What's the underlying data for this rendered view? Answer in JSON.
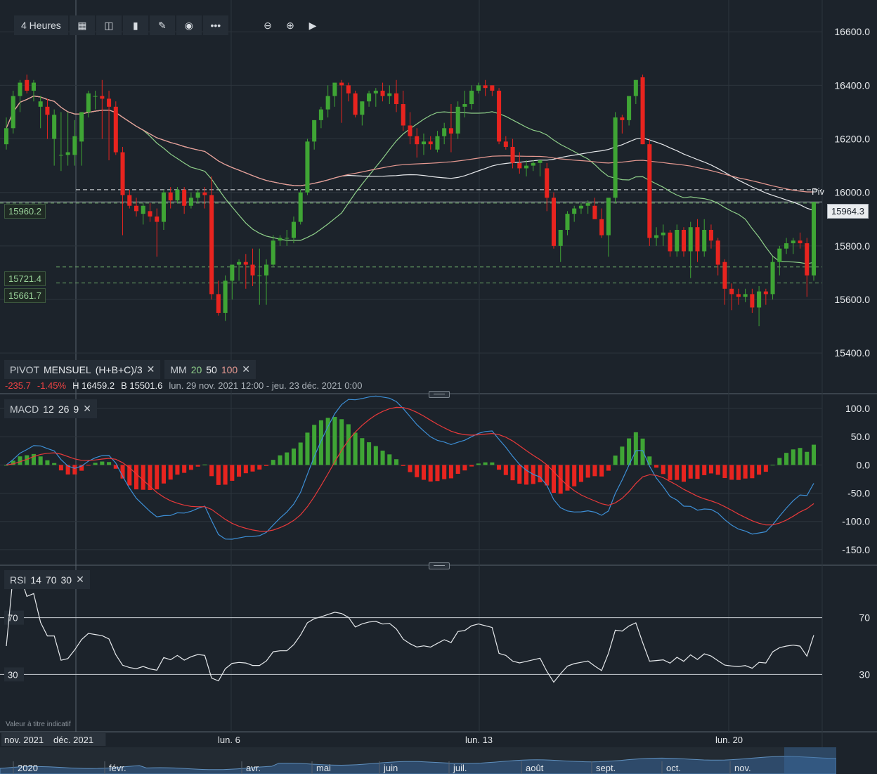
{
  "toolbar": {
    "timeframe_label": "4 Heures"
  },
  "legend": {
    "pivot_label": "PIVOT",
    "pivot_period": "MENSUEL",
    "pivot_formula": "(H+B+C)/3",
    "mm_label": "MM",
    "mm_20": "20",
    "mm_50": "50",
    "mm_100": "100",
    "change": "-235.7",
    "change_pct": "-1.45%",
    "high": "H 16459.2",
    "low": "B 15501.6",
    "range": "lun. 29 nov. 2021 12:00 - jeu. 23 déc. 2021 0:00"
  },
  "macd_legend": {
    "label": "MACD",
    "p1": "12",
    "p2": "26",
    "p3": "9"
  },
  "rsi_legend": {
    "label": "RSI",
    "p1": "14",
    "p2": "70",
    "p3": "30"
  },
  "price_tags": {
    "current": "15964.3",
    "left_1": "15960.2",
    "left_2": "15721.4",
    "left_3": "15661.7",
    "piv": "Piv"
  },
  "note": "Valeur à titre indicatif",
  "colors": {
    "up": "#3fa535",
    "down": "#e8241f",
    "mm20": "#8fd08a",
    "mm50": "#e7e9ec",
    "mm100": "#e89a92",
    "macd": "#3d8fd6",
    "signal": "#e8393a"
  },
  "chart_data": {
    "type": "candlestick",
    "timeframe": "4 Heures",
    "y_ticks": [
      15400,
      15600,
      15800,
      16000,
      16200,
      16400,
      16600
    ],
    "ylim": [
      15340,
      16640
    ],
    "x_labels": [
      "nov. 2021",
      "déc. 2021",
      "lun. 6",
      "lun. 13",
      "lun. 20"
    ],
    "levels": {
      "pivot": 16010,
      "current": 15964.3,
      "left_1": 15960.2,
      "left_2": 15721.4,
      "left_3": 15661.7
    },
    "candles": [
      [
        16180,
        16280,
        16160,
        16240
      ],
      [
        16240,
        16380,
        16220,
        16360
      ],
      [
        16360,
        16420,
        16300,
        16410
      ],
      [
        16420,
        16440,
        16370,
        16380
      ],
      [
        16380,
        16420,
        16340,
        16410
      ],
      [
        16320,
        16360,
        16240,
        16340
      ],
      [
        16320,
        16350,
        16200,
        16290
      ],
      [
        16200,
        16310,
        16100,
        16290
      ],
      [
        16140,
        16300,
        16080,
        16140
      ],
      [
        16140,
        16300,
        16100,
        16150
      ],
      [
        16140,
        16270,
        16100,
        16210
      ],
      [
        16190,
        16300,
        16100,
        16300
      ],
      [
        16300,
        16380,
        16280,
        16370
      ],
      [
        16360,
        16380,
        16310,
        16360
      ],
      [
        16360,
        16420,
        16200,
        16350
      ],
      [
        16350,
        16380,
        16120,
        16320
      ],
      [
        16320,
        16340,
        16140,
        16150
      ],
      [
        16150,
        16170,
        15840,
        15990
      ],
      [
        15990,
        16010,
        15940,
        15950
      ],
      [
        15950,
        15980,
        15910,
        15930
      ],
      [
        15920,
        15960,
        15880,
        15950
      ],
      [
        15930,
        15960,
        15890,
        15910
      ],
      [
        15910,
        15940,
        15760,
        15890
      ],
      [
        15890,
        16010,
        15860,
        16000
      ],
      [
        16000,
        16020,
        15940,
        15970
      ],
      [
        15970,
        16020,
        15960,
        16010
      ],
      [
        16010,
        16020,
        15920,
        15950
      ],
      [
        15950,
        16000,
        15940,
        15980
      ],
      [
        15980,
        16010,
        15960,
        16000
      ],
      [
        16000,
        16020,
        15940,
        15990
      ],
      [
        15990,
        16060,
        15600,
        15620
      ],
      [
        15620,
        15670,
        15540,
        15550
      ],
      [
        15550,
        15690,
        15520,
        15670
      ],
      [
        15670,
        15720,
        15600,
        15730
      ],
      [
        15730,
        15750,
        15670,
        15740
      ],
      [
        15740,
        15770,
        15640,
        15730
      ],
      [
        15730,
        15790,
        15650,
        15690
      ],
      [
        15690,
        15790,
        15580,
        15690
      ],
      [
        15690,
        15750,
        15580,
        15730
      ],
      [
        15730,
        15840,
        15720,
        15820
      ],
      [
        15820,
        15840,
        15800,
        15830
      ],
      [
        15830,
        15860,
        15800,
        15830
      ],
      [
        15830,
        15910,
        15810,
        15890
      ],
      [
        15890,
        16010,
        15880,
        16000
      ],
      [
        16000,
        16200,
        15990,
        16190
      ],
      [
        16190,
        16270,
        16160,
        16270
      ],
      [
        16270,
        16320,
        16240,
        16310
      ],
      [
        16310,
        16400,
        16280,
        16360
      ],
      [
        16360,
        16400,
        16320,
        16410
      ],
      [
        16410,
        16420,
        16260,
        16400
      ],
      [
        16400,
        16410,
        16340,
        16370
      ],
      [
        16370,
        16380,
        16280,
        16290
      ],
      [
        16290,
        16340,
        16250,
        16340
      ],
      [
        16340,
        16380,
        16320,
        16370
      ],
      [
        16370,
        16390,
        16320,
        16380
      ],
      [
        16380,
        16410,
        16340,
        16360
      ],
      [
        16360,
        16400,
        16330,
        16370
      ],
      [
        16370,
        16420,
        16300,
        16330
      ],
      [
        16330,
        16380,
        16230,
        16250
      ],
      [
        16250,
        16300,
        16180,
        16210
      ],
      [
        16210,
        16240,
        16130,
        16180
      ],
      [
        16180,
        16220,
        16140,
        16190
      ],
      [
        16190,
        16210,
        16160,
        16180
      ],
      [
        16160,
        16230,
        16150,
        16210
      ],
      [
        16210,
        16260,
        16180,
        16240
      ],
      [
        16240,
        16330,
        16150,
        16220
      ],
      [
        16220,
        16340,
        16200,
        16320
      ],
      [
        16320,
        16380,
        16280,
        16330
      ],
      [
        16330,
        16400,
        16310,
        16380
      ],
      [
        16380,
        16410,
        16370,
        16400
      ],
      [
        16400,
        16420,
        16360,
        16390
      ],
      [
        16400,
        16400,
        16360,
        16380
      ],
      [
        16380,
        16390,
        16180,
        16190
      ],
      [
        16190,
        16210,
        16160,
        16170
      ],
      [
        16170,
        16200,
        16090,
        16110
      ],
      [
        16110,
        16150,
        16070,
        16090
      ],
      [
        16090,
        16120,
        16060,
        16100
      ],
      [
        16100,
        16120,
        16080,
        16110
      ],
      [
        16110,
        16120,
        16060,
        16120
      ],
      [
        16090,
        16110,
        15930,
        15980
      ],
      [
        15980,
        16000,
        15790,
        15800
      ],
      [
        15800,
        15850,
        15740,
        15860
      ],
      [
        15860,
        15930,
        15840,
        15920
      ],
      [
        15920,
        15950,
        15890,
        15940
      ],
      [
        15940,
        15960,
        15920,
        15950
      ],
      [
        15950,
        15970,
        15920,
        15960
      ],
      [
        15950,
        15980,
        15910,
        15900
      ],
      [
        15900,
        15940,
        15830,
        15840
      ],
      [
        15840,
        15970,
        15760,
        15980
      ],
      [
        15980,
        16300,
        15960,
        16280
      ],
      [
        16280,
        16290,
        16220,
        16270
      ],
      [
        16270,
        16350,
        16250,
        16360
      ],
      [
        16360,
        16420,
        16330,
        16420
      ],
      [
        16430,
        16440,
        16180,
        16180
      ],
      [
        16180,
        16200,
        15800,
        15830
      ],
      [
        15830,
        15870,
        15800,
        15840
      ],
      [
        15840,
        15880,
        15800,
        15850
      ],
      [
        15850,
        15860,
        15760,
        15780
      ],
      [
        15780,
        15880,
        15760,
        15860
      ],
      [
        15860,
        15870,
        15760,
        15780
      ],
      [
        15780,
        15890,
        15680,
        15870
      ],
      [
        15870,
        15900,
        15740,
        15780
      ],
      [
        15780,
        15900,
        15760,
        15860
      ],
      [
        15860,
        15880,
        15790,
        15820
      ],
      [
        15820,
        15830,
        15690,
        15730
      ],
      [
        15740,
        15750,
        15580,
        15640
      ],
      [
        15640,
        15660,
        15560,
        15620
      ],
      [
        15620,
        15640,
        15580,
        15610
      ],
      [
        15610,
        15640,
        15590,
        15620
      ],
      [
        15620,
        15640,
        15550,
        15570
      ],
      [
        15570,
        15650,
        15500,
        15630
      ],
      [
        15630,
        15640,
        15580,
        15620
      ],
      [
        15620,
        15760,
        15600,
        15740
      ],
      [
        15740,
        15800,
        15690,
        15790
      ],
      [
        15790,
        15830,
        15770,
        15810
      ],
      [
        15810,
        15830,
        15770,
        15820
      ],
      [
        15820,
        15850,
        15790,
        15810
      ],
      [
        15810,
        15830,
        15610,
        15690
      ],
      [
        15690,
        15960,
        15670,
        15964.3
      ]
    ],
    "macd": {
      "ylim": [
        -175,
        120
      ],
      "y_ticks": [
        100,
        50,
        0,
        -50,
        -100,
        -150
      ]
    },
    "rsi": {
      "ylim": [
        0,
        100
      ],
      "levels": [
        70,
        30
      ]
    }
  }
}
